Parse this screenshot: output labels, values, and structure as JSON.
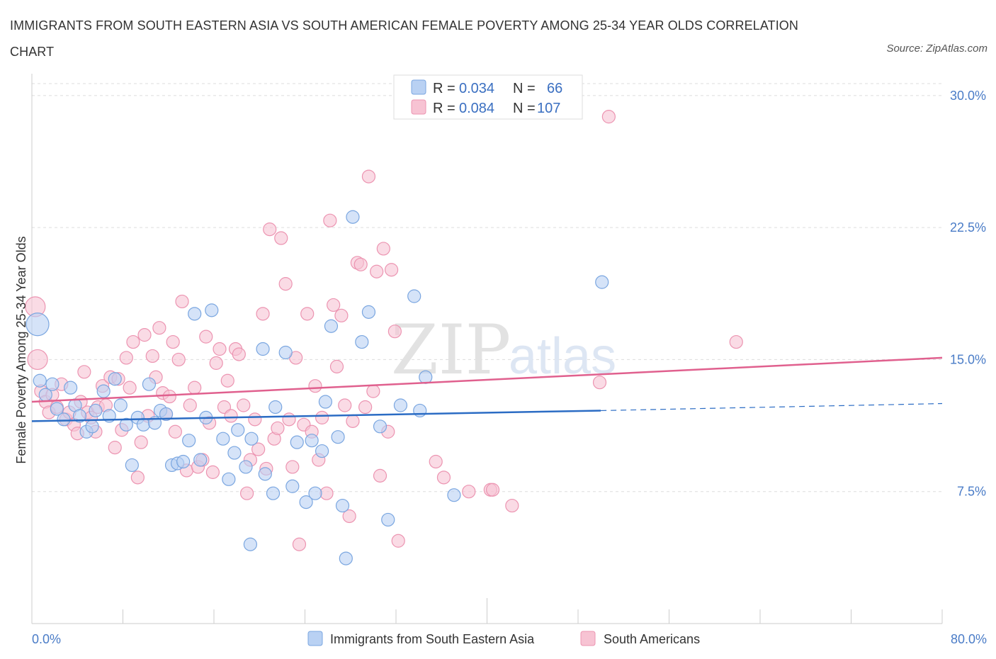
{
  "title": "IMMIGRANTS FROM SOUTH EASTERN ASIA VS SOUTH AMERICAN FEMALE POVERTY AMONG 25-34 YEAR OLDS CORRELATION CHART",
  "source": "Source: ZipAtlas.com",
  "watermark": {
    "zip": "ZIP",
    "atlas": "atlas"
  },
  "colors": {
    "blue_fill": "#b9d1f3",
    "blue_stroke": "#7aa6e0",
    "blue_line": "#2b6cc4",
    "pink_fill": "#f7c3d3",
    "pink_stroke": "#ec94b1",
    "pink_line": "#e0608e",
    "grid": "#dddddd",
    "axis_text": "#4a7cc7"
  },
  "legend": {
    "rows": [
      {
        "r_label": "R = ",
        "r_value": "0.034",
        "n_label": "N = ",
        "n_value": "66"
      },
      {
        "r_label": "R = ",
        "r_value": "0.084",
        "n_label": "N = ",
        "n_value": "107"
      }
    ]
  },
  "chart_data": {
    "type": "scatter",
    "title": "IMMIGRANTS FROM SOUTH EASTERN ASIA VS SOUTH AMERICAN FEMALE POVERTY AMONG 25-34 YEAR OLDS CORRELATION CHART",
    "xlabel": "",
    "ylabel": "Female Poverty Among 25-34 Year Olds",
    "xlim": [
      0,
      80
    ],
    "ylim": [
      0,
      31
    ],
    "x_tick_labels": [
      "0.0%",
      "80.0%"
    ],
    "y_ticks": [
      7.5,
      15.0,
      22.5,
      30.0
    ],
    "y_tick_labels": [
      "7.5%",
      "15.0%",
      "22.5%",
      "30.0%"
    ],
    "grid": "horizontal dashed",
    "legend_position": "top-center",
    "series": [
      {
        "name": "Immigrants from South Eastern Asia",
        "R": 0.034,
        "N": 66,
        "trend": {
          "x": [
            0,
            50
          ],
          "y": [
            11.5,
            12.1
          ],
          "dashed_extension_x": [
            50,
            80
          ],
          "dashed_extension_y": [
            12.1,
            12.5
          ]
        },
        "points": [
          [
            0.5,
            17.0
          ],
          [
            0.7,
            13.8
          ],
          [
            1.2,
            13.0
          ],
          [
            1.8,
            13.6
          ],
          [
            2.2,
            12.2
          ],
          [
            2.8,
            11.6
          ],
          [
            3.4,
            13.4
          ],
          [
            3.8,
            12.4
          ],
          [
            4.2,
            11.8
          ],
          [
            4.8,
            10.9
          ],
          [
            5.3,
            11.2
          ],
          [
            5.6,
            12.1
          ],
          [
            6.3,
            13.2
          ],
          [
            6.8,
            11.8
          ],
          [
            7.3,
            13.9
          ],
          [
            7.8,
            12.4
          ],
          [
            8.3,
            11.3
          ],
          [
            8.8,
            9.0
          ],
          [
            9.3,
            11.7
          ],
          [
            9.8,
            11.3
          ],
          [
            10.3,
            13.6
          ],
          [
            10.8,
            11.4
          ],
          [
            11.3,
            12.1
          ],
          [
            11.8,
            11.9
          ],
          [
            12.3,
            9.0
          ],
          [
            12.8,
            9.1
          ],
          [
            13.3,
            9.2
          ],
          [
            13.8,
            10.4
          ],
          [
            14.3,
            17.6
          ],
          [
            14.8,
            9.3
          ],
          [
            15.3,
            11.7
          ],
          [
            15.8,
            17.8
          ],
          [
            16.8,
            10.5
          ],
          [
            17.3,
            8.2
          ],
          [
            17.8,
            9.7
          ],
          [
            18.1,
            11.0
          ],
          [
            18.8,
            8.9
          ],
          [
            19.3,
            10.5
          ],
          [
            19.2,
            4.5
          ],
          [
            20.3,
            15.6
          ],
          [
            20.5,
            8.5
          ],
          [
            21.2,
            7.4
          ],
          [
            21.4,
            12.3
          ],
          [
            22.3,
            15.4
          ],
          [
            22.9,
            7.8
          ],
          [
            23.3,
            10.3
          ],
          [
            24.1,
            6.9
          ],
          [
            24.6,
            10.4
          ],
          [
            24.9,
            7.4
          ],
          [
            25.5,
            9.8
          ],
          [
            25.8,
            12.6
          ],
          [
            26.3,
            16.9
          ],
          [
            26.9,
            10.6
          ],
          [
            27.3,
            6.7
          ],
          [
            27.6,
            3.7
          ],
          [
            28.2,
            23.1
          ],
          [
            29.0,
            16.0
          ],
          [
            29.6,
            17.7
          ],
          [
            30.6,
            11.2
          ],
          [
            31.3,
            5.9
          ],
          [
            32.4,
            12.4
          ],
          [
            33.6,
            18.6
          ],
          [
            34.1,
            12.1
          ],
          [
            34.6,
            14.0
          ],
          [
            37.1,
            7.3
          ],
          [
            50.1,
            19.4
          ]
        ]
      },
      {
        "name": "South Americans",
        "R": 0.084,
        "N": 107,
        "trend": {
          "x": [
            0,
            80
          ],
          "y": [
            12.6,
            15.1
          ]
        },
        "points": [
          [
            0.3,
            18.0
          ],
          [
            0.5,
            15.0
          ],
          [
            0.8,
            13.2
          ],
          [
            1.2,
            12.6
          ],
          [
            1.5,
            12.0
          ],
          [
            1.8,
            13.0
          ],
          [
            2.2,
            12.3
          ],
          [
            2.6,
            13.6
          ],
          [
            3.0,
            11.6
          ],
          [
            3.3,
            12.0
          ],
          [
            3.7,
            11.3
          ],
          [
            4.0,
            10.8
          ],
          [
            4.3,
            12.6
          ],
          [
            4.6,
            14.3
          ],
          [
            4.9,
            12.0
          ],
          [
            5.2,
            11.7
          ],
          [
            5.6,
            10.9
          ],
          [
            5.8,
            12.3
          ],
          [
            6.2,
            13.5
          ],
          [
            6.5,
            12.4
          ],
          [
            6.9,
            14.0
          ],
          [
            7.3,
            10.0
          ],
          [
            7.6,
            13.9
          ],
          [
            7.9,
            11.0
          ],
          [
            8.3,
            15.1
          ],
          [
            8.6,
            13.4
          ],
          [
            8.9,
            16.0
          ],
          [
            9.3,
            8.3
          ],
          [
            9.6,
            10.3
          ],
          [
            9.9,
            16.4
          ],
          [
            10.2,
            11.8
          ],
          [
            10.6,
            15.2
          ],
          [
            10.9,
            14.0
          ],
          [
            11.2,
            16.8
          ],
          [
            11.5,
            13.1
          ],
          [
            11.8,
            11.9
          ],
          [
            12.1,
            12.9
          ],
          [
            12.4,
            16.0
          ],
          [
            12.6,
            10.9
          ],
          [
            12.9,
            15.0
          ],
          [
            13.2,
            18.3
          ],
          [
            13.6,
            8.7
          ],
          [
            13.9,
            12.4
          ],
          [
            14.3,
            13.4
          ],
          [
            14.6,
            8.9
          ],
          [
            15.0,
            9.3
          ],
          [
            15.3,
            16.3
          ],
          [
            15.6,
            11.4
          ],
          [
            15.9,
            8.6
          ],
          [
            16.2,
            14.8
          ],
          [
            16.5,
            15.6
          ],
          [
            16.9,
            12.3
          ],
          [
            17.2,
            13.8
          ],
          [
            17.5,
            11.8
          ],
          [
            17.9,
            15.6
          ],
          [
            18.2,
            15.3
          ],
          [
            18.6,
            12.4
          ],
          [
            18.9,
            7.4
          ],
          [
            19.2,
            9.3
          ],
          [
            19.6,
            11.6
          ],
          [
            19.9,
            9.9
          ],
          [
            20.3,
            17.6
          ],
          [
            20.6,
            8.8
          ],
          [
            20.9,
            22.4
          ],
          [
            21.3,
            10.5
          ],
          [
            21.6,
            11.1
          ],
          [
            21.9,
            21.9
          ],
          [
            22.3,
            19.3
          ],
          [
            22.6,
            11.6
          ],
          [
            22.9,
            8.9
          ],
          [
            23.2,
            15.1
          ],
          [
            23.5,
            4.5
          ],
          [
            23.9,
            11.3
          ],
          [
            24.2,
            17.6
          ],
          [
            24.6,
            10.9
          ],
          [
            24.9,
            13.5
          ],
          [
            25.2,
            9.3
          ],
          [
            25.5,
            11.7
          ],
          [
            25.9,
            7.4
          ],
          [
            26.2,
            22.9
          ],
          [
            26.5,
            18.1
          ],
          [
            26.8,
            14.6
          ],
          [
            27.2,
            17.5
          ],
          [
            27.5,
            12.4
          ],
          [
            27.9,
            6.1
          ],
          [
            28.2,
            11.5
          ],
          [
            28.6,
            20.5
          ],
          [
            28.9,
            20.4
          ],
          [
            29.3,
            12.3
          ],
          [
            29.6,
            25.4
          ],
          [
            30.0,
            13.2
          ],
          [
            30.3,
            20.0
          ],
          [
            30.6,
            8.4
          ],
          [
            30.9,
            21.3
          ],
          [
            31.3,
            10.9
          ],
          [
            31.6,
            20.1
          ],
          [
            31.9,
            16.6
          ],
          [
            32.2,
            4.7
          ],
          [
            35.5,
            9.2
          ],
          [
            36.2,
            8.3
          ],
          [
            38.4,
            7.5
          ],
          [
            40.3,
            7.6
          ],
          [
            40.5,
            7.6
          ],
          [
            42.2,
            6.7
          ],
          [
            49.9,
            13.7
          ],
          [
            50.7,
            28.8
          ],
          [
            61.9,
            16.0
          ]
        ]
      }
    ]
  }
}
